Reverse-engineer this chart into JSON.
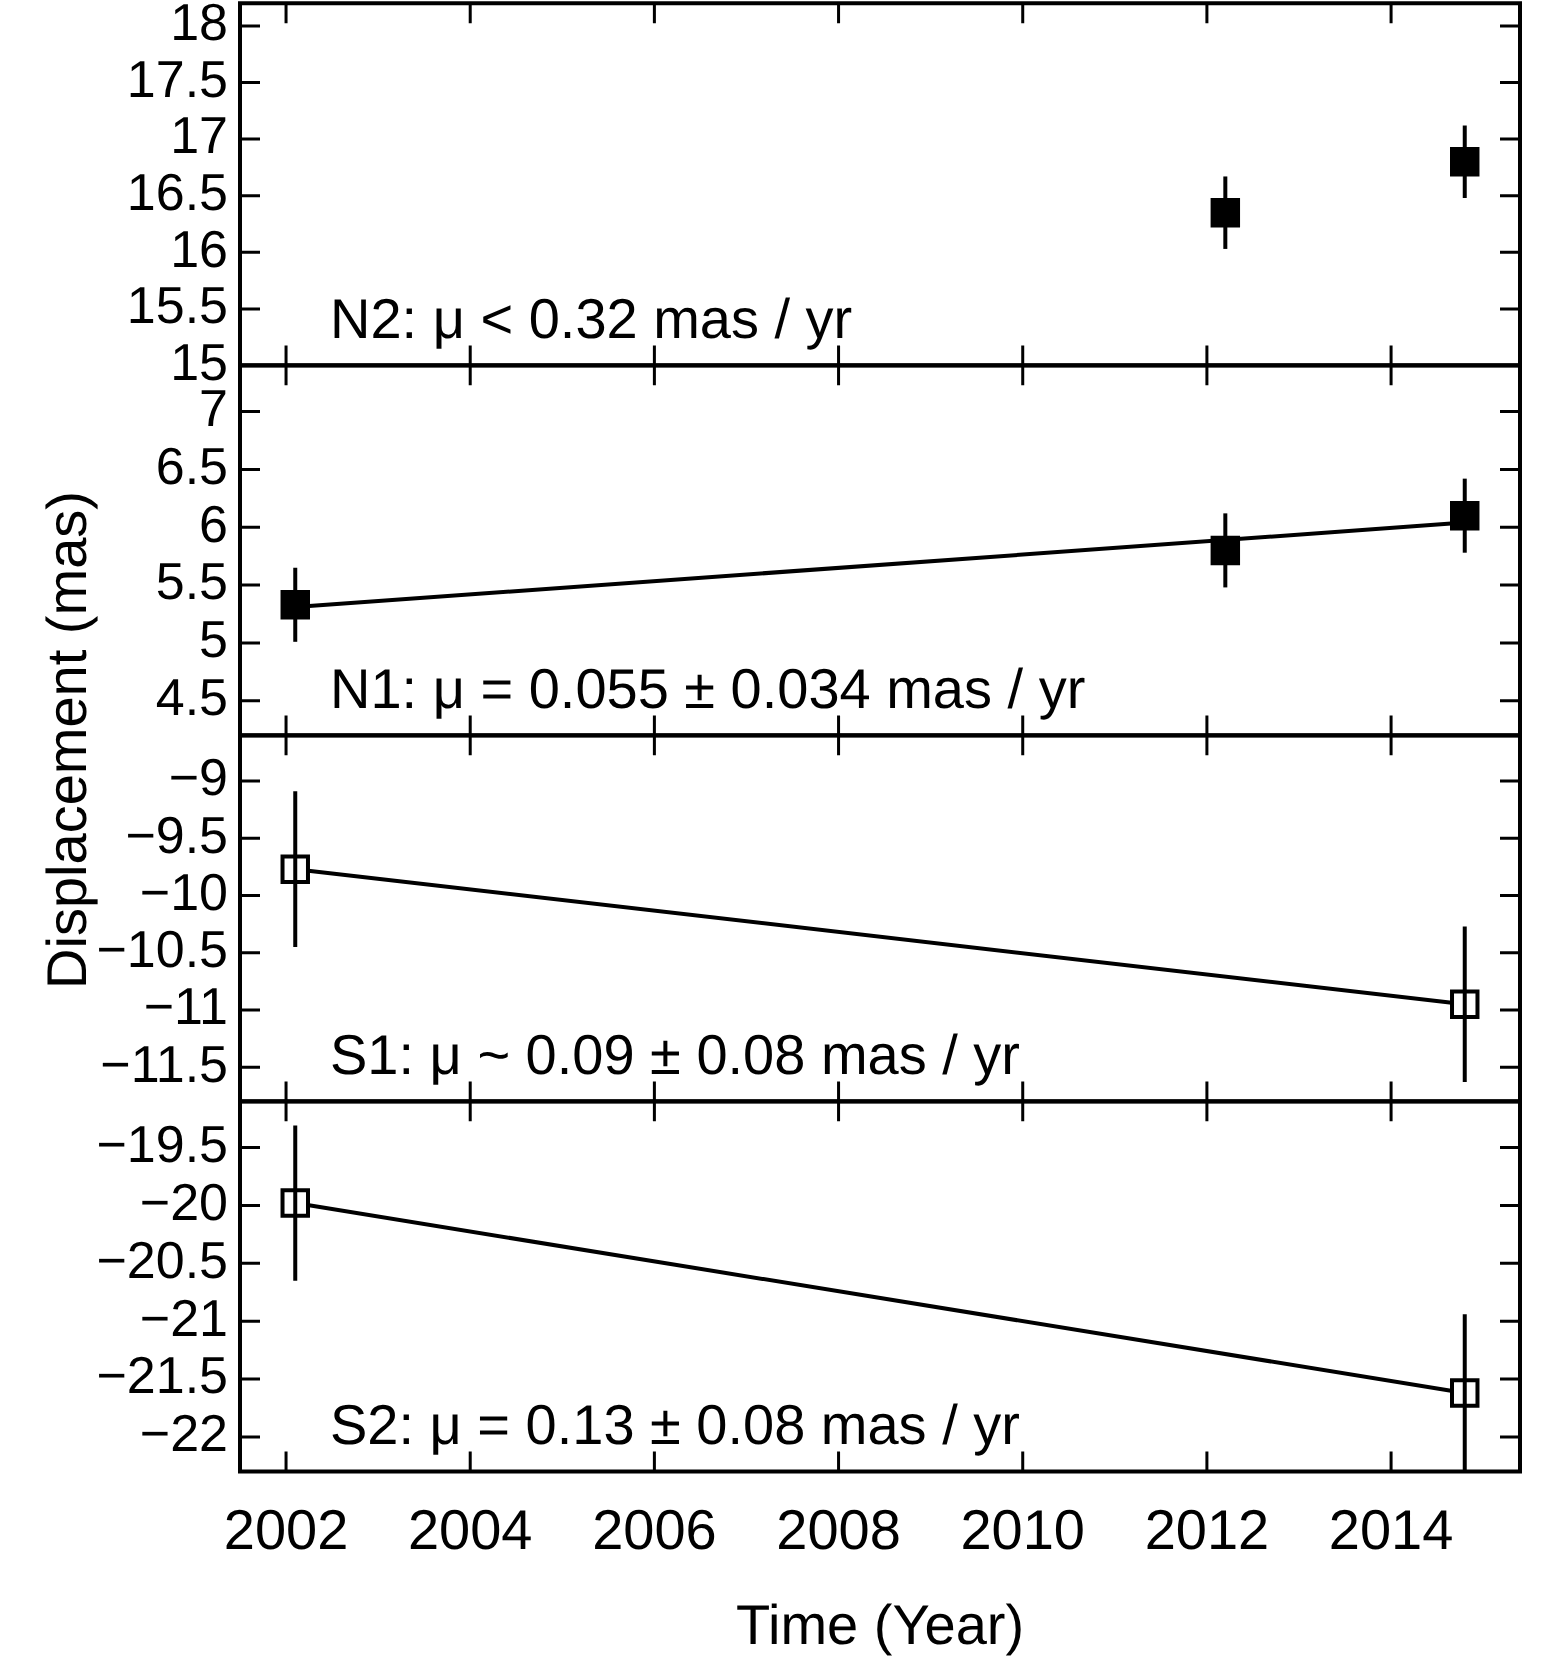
{
  "chart_data": [
    {
      "type": "scatter",
      "ylabel": "Displacement (mas)",
      "annotations": [
        "N2: μ < 0.32 mas / yr"
      ],
      "tick_labels": "y",
      "xlim": [
        2001.5,
        2015.4
      ],
      "xticks": [
        2002,
        2004,
        2006,
        2008,
        2010,
        2012,
        2014
      ],
      "ylim": [
        15,
        18.2
      ],
      "yticks": [
        15,
        15.5,
        16,
        16.5,
        17,
        17.5,
        18
      ],
      "series": [
        {
          "color": "#000000",
          "marker": "square",
          "x": [
            2012.2,
            2014.8
          ],
          "values": [
            16.35,
            16.8
          ],
          "errors": [
            0.32,
            0.32
          ]
        }
      ]
    },
    {
      "type": "scatter",
      "annotations": [
        "N1: μ = 0.055 ± 0.034 mas / yr"
      ],
      "tick_labels": "y",
      "xlim": [
        2001.5,
        2015.4
      ],
      "xticks": [
        2002,
        2004,
        2006,
        2008,
        2010,
        2012,
        2014
      ],
      "ylim": [
        4.2,
        7.4
      ],
      "yticks": [
        4.5,
        5,
        5.5,
        6,
        6.5,
        7
      ],
      "series": [
        {
          "color": "#000000",
          "marker": "square",
          "x": [
            2002.1,
            2012.2,
            2014.8
          ],
          "values": [
            5.33,
            5.8,
            6.1
          ],
          "errors": [
            0.32,
            0.32,
            0.32
          ]
        },
        {
          "type": "line",
          "marker": "none",
          "color": "#000000",
          "x": [
            2002.1,
            2014.8
          ],
          "values": [
            5.31,
            6.04
          ]
        }
      ]
    },
    {
      "type": "scatter",
      "annotations": [
        "S1: μ ~ 0.09 ± 0.08 mas / yr"
      ],
      "tick_labels": "y",
      "xlim": [
        2001.5,
        2015.4
      ],
      "xticks": [
        2002,
        2004,
        2006,
        2008,
        2010,
        2012,
        2014
      ],
      "ylim": [
        -11.8,
        -8.6
      ],
      "yticks": [
        {
          "value": -11.5,
          "label": "−11.5"
        },
        {
          "value": -11,
          "label": "−11"
        },
        {
          "value": -10.5,
          "label": "−10.5"
        },
        {
          "value": -10,
          "label": "−10"
        },
        {
          "value": -9.5,
          "label": "−9.5"
        },
        {
          "value": -9,
          "label": "−9"
        }
      ],
      "series": [
        {
          "color": "#ffffff",
          "marker": "square",
          "x": [
            2002.1,
            2014.8
          ],
          "values": [
            -9.77,
            -10.95
          ],
          "errors": [
            0.68,
            0.68
          ]
        },
        {
          "type": "line",
          "marker": "none",
          "color": "#000000",
          "x": [
            2002.1,
            2014.8
          ],
          "values": [
            -9.77,
            -10.95
          ]
        }
      ]
    },
    {
      "type": "scatter",
      "annotations": [
        "S2: μ = 0.13 ± 0.08 mas / yr"
      ],
      "xlabel": "Time (Year)",
      "xlim": [
        2001.5,
        2015.4
      ],
      "xticks": [
        2002,
        2004,
        2006,
        2008,
        2010,
        2012,
        2014
      ],
      "ylim": [
        -22.3,
        -19.1
      ],
      "yticks": [
        {
          "value": -22,
          "label": "−22"
        },
        {
          "value": -21.5,
          "label": "−21.5"
        },
        {
          "value": -21,
          "label": "−21"
        },
        {
          "value": -20.5,
          "label": "−20.5"
        },
        {
          "value": -20,
          "label": "−20"
        },
        {
          "value": -19.5,
          "label": "−19.5"
        }
      ],
      "series": [
        {
          "color": "#ffffff",
          "marker": "square",
          "x": [
            2002.1,
            2014.8
          ],
          "values": [
            -19.98,
            -21.62
          ],
          "errors": [
            0.67,
            0.68
          ]
        },
        {
          "type": "line",
          "marker": "none",
          "color": "#000000",
          "x": [
            2002.1,
            2014.8
          ],
          "values": [
            -19.98,
            -21.62
          ]
        }
      ]
    }
  ]
}
